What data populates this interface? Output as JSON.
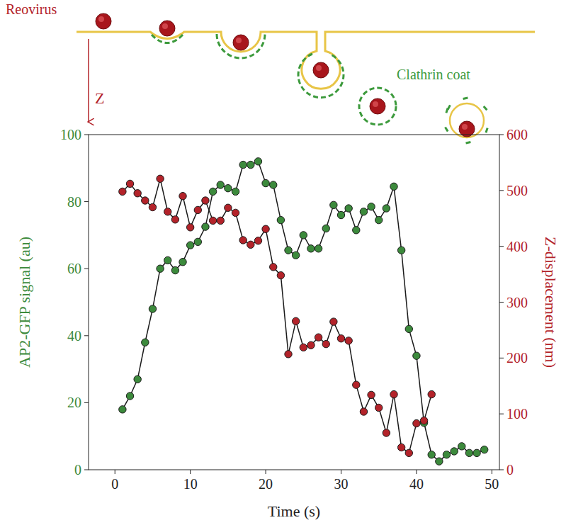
{
  "chart_data": {
    "type": "line",
    "x_label": "Time (s)",
    "y_label": "AP2-GFP signal (au)",
    "y2_label": "Z-displacement (nm)",
    "annotations": [
      "Reovirus",
      "Z",
      "Clathrin coat"
    ],
    "x": [
      1,
      2,
      3,
      4,
      5,
      6,
      7,
      8,
      9,
      10,
      11,
      12,
      13,
      14,
      15,
      16,
      17,
      18,
      19,
      20,
      21,
      22,
      23,
      24,
      25,
      26,
      27,
      28,
      29,
      30,
      31,
      32,
      33,
      34,
      35,
      36,
      37,
      38,
      39,
      40,
      41,
      42,
      43,
      44,
      45,
      46,
      47,
      48,
      49
    ],
    "series": [
      {
        "color": "#3c8a3c",
        "marker": "circle",
        "values": [
          18,
          22,
          27,
          38,
          48,
          60,
          62.5,
          59.5,
          62,
          67,
          68,
          72.5,
          83,
          85,
          84,
          83,
          91,
          91,
          92,
          85.5,
          85,
          74.5,
          65.5,
          64,
          70,
          66,
          66,
          72,
          79,
          76,
          78,
          71.5,
          77,
          78.5,
          74.5,
          78,
          84.5,
          65.5,
          42,
          34,
          14,
          4.5,
          2.5,
          4.5,
          5.5,
          7,
          5,
          5,
          6
        ]
      },
      {
        "color": "#b3232a",
        "marker": "circle",
        "axis": "y2",
        "values": [
          498,
          512,
          495,
          482,
          470,
          521,
          462,
          448,
          490,
          434,
          465,
          482,
          446,
          446,
          469,
          460,
          411,
          403,
          410,
          431,
          363,
          348,
          207,
          266,
          219,
          223,
          237,
          225,
          265,
          235,
          231,
          152,
          104,
          134,
          111,
          66,
          135,
          40,
          30,
          83,
          88,
          135,
          null,
          null,
          null,
          null,
          null,
          null,
          null
        ]
      }
    ],
    "xlim": [
      -3.5,
      51
    ],
    "xticks": [
      0,
      10,
      20,
      30,
      40,
      50
    ],
    "ylim": [
      0,
      100
    ],
    "yticks": [
      0,
      20,
      40,
      60,
      80,
      100
    ],
    "y2lim": [
      0,
      600
    ],
    "y2ticks": [
      0,
      100,
      200,
      300,
      400,
      500,
      600
    ],
    "grid": false
  }
}
